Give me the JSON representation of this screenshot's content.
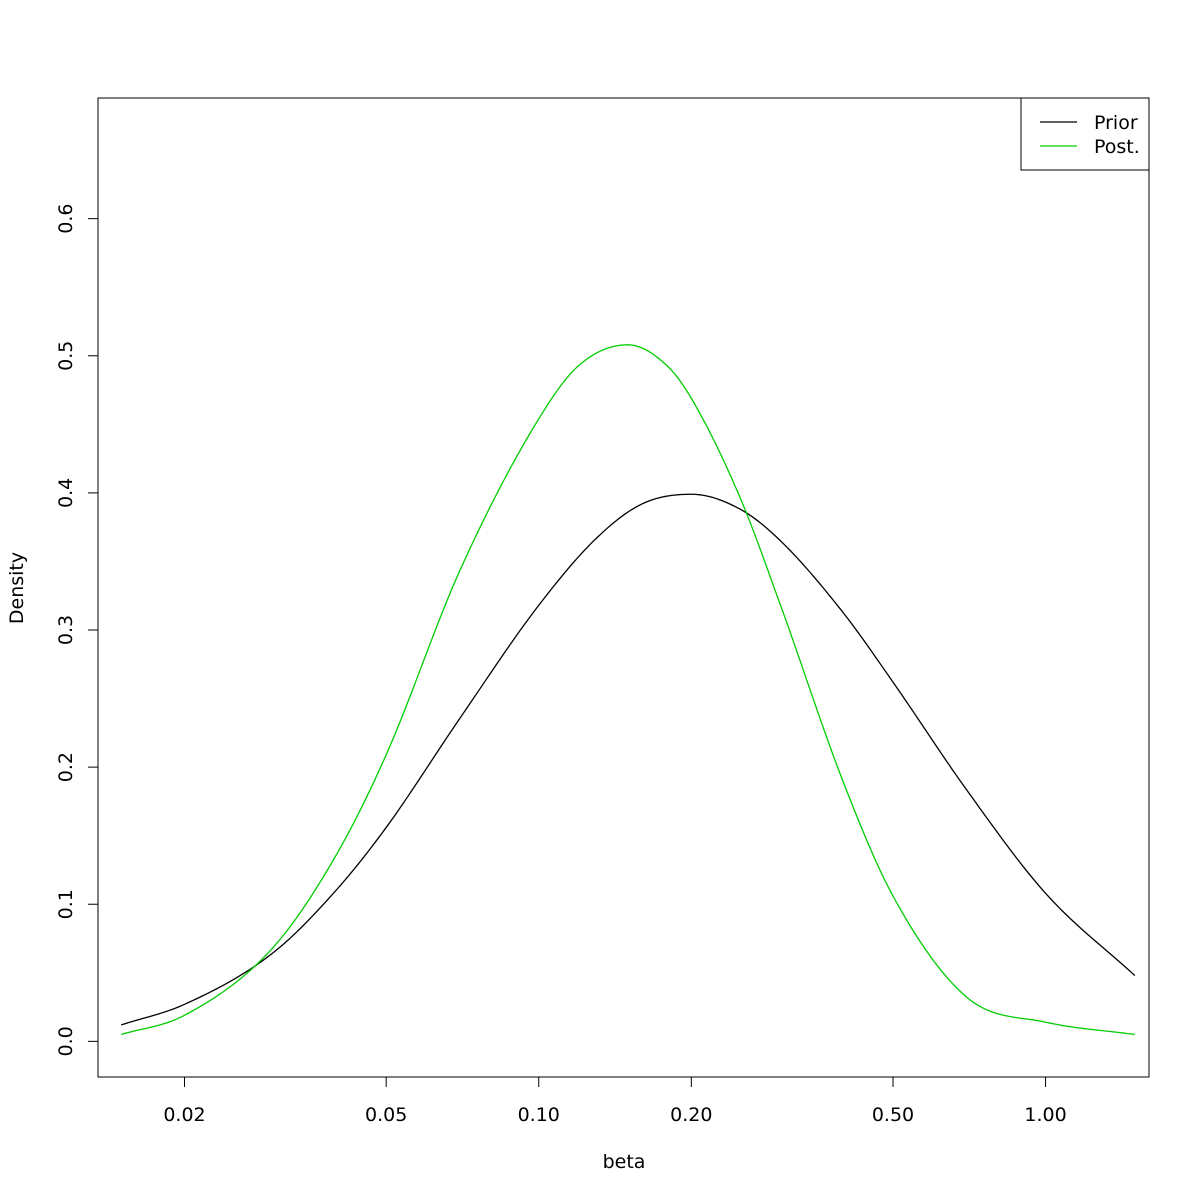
{
  "chart_data": {
    "type": "line",
    "xlabel": "beta",
    "ylabel": "Density",
    "x_scale": "log",
    "xlim": [
      0.0135,
      1.6
    ],
    "ylim": [
      -0.026,
      0.688
    ],
    "x_ticks": [
      {
        "value": 0.02,
        "label": "0.02"
      },
      {
        "value": 0.05,
        "label": "0.05"
      },
      {
        "value": 0.1,
        "label": "0.10"
      },
      {
        "value": 0.2,
        "label": "0.20"
      },
      {
        "value": 0.5,
        "label": "0.50"
      },
      {
        "value": 1.0,
        "label": "1.00"
      }
    ],
    "y_ticks": [
      {
        "value": 0.0,
        "label": "0.0"
      },
      {
        "value": 0.1,
        "label": "0.1"
      },
      {
        "value": 0.2,
        "label": "0.2"
      },
      {
        "value": 0.3,
        "label": "0.3"
      },
      {
        "value": 0.4,
        "label": "0.4"
      },
      {
        "value": 0.5,
        "label": "0.5"
      },
      {
        "value": 0.6,
        "label": "0.6"
      }
    ],
    "grid": false,
    "legend_position": "top-right",
    "series": [
      {
        "name": "Prior",
        "color": "#000000",
        "x": [
          0.015,
          0.02,
          0.03,
          0.04,
          0.05,
          0.07,
          0.1,
          0.13,
          0.16,
          0.2,
          0.25,
          0.3,
          0.4,
          0.5,
          0.7,
          1.0,
          1.5
        ],
        "y": [
          0.012,
          0.027,
          0.065,
          0.111,
          0.156,
          0.236,
          0.318,
          0.367,
          0.392,
          0.399,
          0.388,
          0.365,
          0.312,
          0.262,
          0.183,
          0.108,
          0.048
        ]
      },
      {
        "name": "Post.",
        "color": "#00cd00",
        "x": [
          0.015,
          0.02,
          0.03,
          0.04,
          0.05,
          0.07,
          0.1,
          0.12,
          0.15,
          0.18,
          0.2,
          0.25,
          0.3,
          0.4,
          0.5,
          0.7,
          1.0,
          1.5
        ],
        "y": [
          0.005,
          0.019,
          0.069,
          0.137,
          0.209,
          0.344,
          0.454,
          0.493,
          0.508,
          0.492,
          0.469,
          0.396,
          0.318,
          0.188,
          0.106,
          0.032,
          0.014,
          0.005
        ]
      }
    ]
  }
}
